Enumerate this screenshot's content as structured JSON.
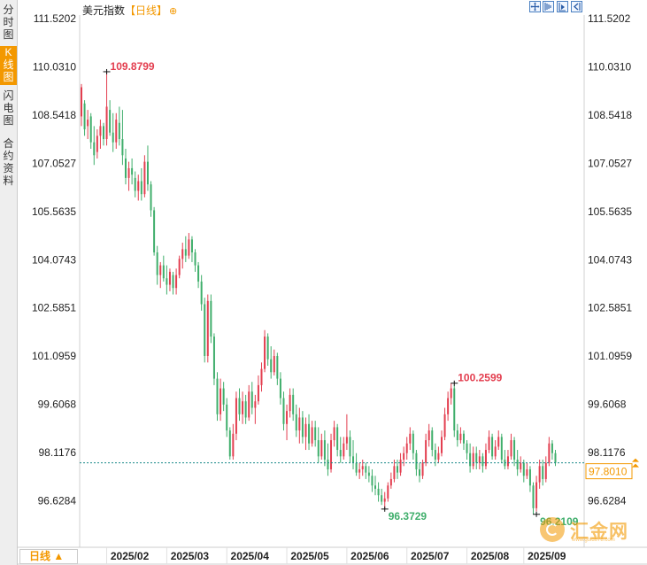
{
  "sidebar": {
    "tabs": [
      {
        "label": "分时图",
        "active": false
      },
      {
        "label": "K线图",
        "active": true
      },
      {
        "label": "闪电图",
        "active": false
      },
      {
        "label": "合约资料",
        "active": false
      }
    ]
  },
  "header": {
    "instrument": "美元指数",
    "period_label": "【日线】",
    "add_icon": "plus-circle-icon"
  },
  "toolbar": {
    "icons": [
      "move-icon",
      "zoom-in-icon",
      "zoom-out-icon",
      "scroll-end-icon"
    ]
  },
  "footer": {
    "period_selector": "日线 ▲"
  },
  "logo": {
    "text": "汇金网",
    "url": "www.gold678.com"
  },
  "colors": {
    "up": "#e33e4f",
    "down": "#3fae6b",
    "accent": "#f39800",
    "current_line": "#1a8a8a"
  },
  "chart_data": {
    "type": "candlestick",
    "title": "美元指数",
    "period": "日线",
    "y_ticks": [
      "111.5202",
      "110.0310",
      "108.5418",
      "107.0527",
      "105.5635",
      "104.0743",
      "102.5851",
      "101.0959",
      "99.6068",
      "98.1176",
      "96.6284"
    ],
    "ylim": [
      95.6,
      111.5202
    ],
    "x_ticks": [
      "2025/02",
      "2025/03",
      "2025/04",
      "2025/05",
      "2025/06",
      "2025/07",
      "2025/08",
      "2025/09"
    ],
    "x_tick_index": [
      8,
      27,
      46,
      65,
      84,
      103,
      122,
      140
    ],
    "current_value": "97.8010",
    "current_price": 97.801,
    "annotations": [
      {
        "label": "109.8799",
        "value": 109.8799,
        "index": 8,
        "kind": "high"
      },
      {
        "label": "100.2599",
        "value": 100.2599,
        "index": 118,
        "kind": "high"
      },
      {
        "label": "96.3729",
        "value": 96.3729,
        "index": 96,
        "kind": "low"
      },
      {
        "label": "96.2109",
        "value": 96.2109,
        "index": 144,
        "kind": "low"
      }
    ],
    "candles": [
      {
        "o": 108.5,
        "h": 109.5,
        "l": 108.2,
        "c": 109.4
      },
      {
        "o": 108.9,
        "h": 109.0,
        "l": 107.9,
        "c": 108.1
      },
      {
        "o": 108.2,
        "h": 108.7,
        "l": 107.8,
        "c": 108.4
      },
      {
        "o": 108.5,
        "h": 108.6,
        "l": 107.5,
        "c": 107.7
      },
      {
        "o": 107.7,
        "h": 108.2,
        "l": 107.0,
        "c": 107.3
      },
      {
        "o": 107.4,
        "h": 108.1,
        "l": 107.2,
        "c": 107.9
      },
      {
        "o": 107.9,
        "h": 108.4,
        "l": 107.5,
        "c": 108.2
      },
      {
        "o": 108.2,
        "h": 108.3,
        "l": 107.6,
        "c": 107.8
      },
      {
        "o": 107.8,
        "h": 109.8799,
        "l": 107.6,
        "c": 108.8
      },
      {
        "o": 108.7,
        "h": 109.0,
        "l": 107.9,
        "c": 108.0
      },
      {
        "o": 108.0,
        "h": 108.6,
        "l": 107.4,
        "c": 107.7
      },
      {
        "o": 107.7,
        "h": 108.6,
        "l": 107.5,
        "c": 108.4
      },
      {
        "o": 108.3,
        "h": 108.8,
        "l": 107.6,
        "c": 107.8
      },
      {
        "o": 107.8,
        "h": 108.7,
        "l": 107.0,
        "c": 107.3
      },
      {
        "o": 107.2,
        "h": 107.5,
        "l": 106.4,
        "c": 106.6
      },
      {
        "o": 106.6,
        "h": 107.1,
        "l": 106.2,
        "c": 106.9
      },
      {
        "o": 106.9,
        "h": 107.2,
        "l": 106.4,
        "c": 106.7
      },
      {
        "o": 106.6,
        "h": 106.8,
        "l": 106.0,
        "c": 106.2
      },
      {
        "o": 106.2,
        "h": 106.7,
        "l": 105.9,
        "c": 106.5
      },
      {
        "o": 106.5,
        "h": 106.9,
        "l": 105.9,
        "c": 106.1
      },
      {
        "o": 106.1,
        "h": 107.3,
        "l": 106.0,
        "c": 107.1
      },
      {
        "o": 107.1,
        "h": 107.6,
        "l": 106.2,
        "c": 106.4
      },
      {
        "o": 106.4,
        "h": 106.5,
        "l": 105.4,
        "c": 105.6
      },
      {
        "o": 105.6,
        "h": 105.7,
        "l": 104.2,
        "c": 104.3
      },
      {
        "o": 104.3,
        "h": 104.5,
        "l": 103.3,
        "c": 103.6
      },
      {
        "o": 103.6,
        "h": 104.0,
        "l": 103.2,
        "c": 103.9
      },
      {
        "o": 103.9,
        "h": 104.2,
        "l": 103.4,
        "c": 103.5
      },
      {
        "o": 103.5,
        "h": 103.9,
        "l": 103.0,
        "c": 103.3
      },
      {
        "o": 103.3,
        "h": 103.8,
        "l": 103.1,
        "c": 103.7
      },
      {
        "o": 103.6,
        "h": 103.7,
        "l": 103.0,
        "c": 103.2
      },
      {
        "o": 103.2,
        "h": 103.8,
        "l": 103.0,
        "c": 103.6
      },
      {
        "o": 103.6,
        "h": 104.2,
        "l": 103.5,
        "c": 104.1
      },
      {
        "o": 104.1,
        "h": 104.6,
        "l": 103.8,
        "c": 104.4
      },
      {
        "o": 104.4,
        "h": 104.8,
        "l": 104.0,
        "c": 104.2
      },
      {
        "o": 104.2,
        "h": 104.9,
        "l": 104.1,
        "c": 104.7
      },
      {
        "o": 104.7,
        "h": 104.8,
        "l": 104.0,
        "c": 104.3
      },
      {
        "o": 104.3,
        "h": 104.4,
        "l": 103.7,
        "c": 103.9
      },
      {
        "o": 103.9,
        "h": 104.0,
        "l": 103.2,
        "c": 103.4
      },
      {
        "o": 103.4,
        "h": 103.6,
        "l": 102.5,
        "c": 102.7
      },
      {
        "o": 102.7,
        "h": 102.9,
        "l": 100.9,
        "c": 101.1
      },
      {
        "o": 101.1,
        "h": 103.0,
        "l": 100.9,
        "c": 102.8
      },
      {
        "o": 102.8,
        "h": 103.0,
        "l": 101.5,
        "c": 101.7
      },
      {
        "o": 101.7,
        "h": 101.8,
        "l": 100.2,
        "c": 100.4
      },
      {
        "o": 100.4,
        "h": 100.6,
        "l": 99.1,
        "c": 99.3
      },
      {
        "o": 99.3,
        "h": 100.4,
        "l": 99.1,
        "c": 100.1
      },
      {
        "o": 100.1,
        "h": 100.3,
        "l": 99.4,
        "c": 99.6
      },
      {
        "o": 99.6,
        "h": 99.8,
        "l": 98.6,
        "c": 98.8
      },
      {
        "o": 98.8,
        "h": 98.9,
        "l": 97.9,
        "c": 98.0
      },
      {
        "o": 98.0,
        "h": 99.0,
        "l": 97.9,
        "c": 98.7
      },
      {
        "o": 98.7,
        "h": 100.0,
        "l": 98.5,
        "c": 99.8
      },
      {
        "o": 99.8,
        "h": 100.1,
        "l": 99.1,
        "c": 99.3
      },
      {
        "o": 99.3,
        "h": 100.0,
        "l": 99.0,
        "c": 99.7
      },
      {
        "o": 99.7,
        "h": 99.9,
        "l": 99.0,
        "c": 99.2
      },
      {
        "o": 99.2,
        "h": 100.2,
        "l": 99.1,
        "c": 100.0
      },
      {
        "o": 100.0,
        "h": 100.3,
        "l": 99.3,
        "c": 99.5
      },
      {
        "o": 99.5,
        "h": 99.9,
        "l": 99.0,
        "c": 99.7
      },
      {
        "o": 99.7,
        "h": 100.5,
        "l": 99.6,
        "c": 100.2
      },
      {
        "o": 100.2,
        "h": 100.9,
        "l": 100.0,
        "c": 100.7
      },
      {
        "o": 100.7,
        "h": 101.9,
        "l": 100.6,
        "c": 101.7
      },
      {
        "o": 101.7,
        "h": 101.8,
        "l": 100.8,
        "c": 101.0
      },
      {
        "o": 101.0,
        "h": 101.4,
        "l": 100.4,
        "c": 100.6
      },
      {
        "o": 100.6,
        "h": 101.3,
        "l": 100.5,
        "c": 101.1
      },
      {
        "o": 101.1,
        "h": 101.2,
        "l": 100.2,
        "c": 100.4
      },
      {
        "o": 100.4,
        "h": 100.6,
        "l": 99.6,
        "c": 99.8
      },
      {
        "o": 99.8,
        "h": 100.0,
        "l": 98.8,
        "c": 99.0
      },
      {
        "o": 99.0,
        "h": 99.6,
        "l": 98.5,
        "c": 99.4
      },
      {
        "o": 99.4,
        "h": 100.1,
        "l": 99.2,
        "c": 99.9
      },
      {
        "o": 99.9,
        "h": 100.1,
        "l": 99.1,
        "c": 99.3
      },
      {
        "o": 99.3,
        "h": 99.6,
        "l": 98.6,
        "c": 98.8
      },
      {
        "o": 98.8,
        "h": 99.5,
        "l": 98.4,
        "c": 99.2
      },
      {
        "o": 99.2,
        "h": 99.4,
        "l": 98.4,
        "c": 98.6
      },
      {
        "o": 98.6,
        "h": 99.2,
        "l": 98.2,
        "c": 99.0
      },
      {
        "o": 99.0,
        "h": 99.3,
        "l": 98.2,
        "c": 98.4
      },
      {
        "o": 98.4,
        "h": 99.1,
        "l": 98.3,
        "c": 98.9
      },
      {
        "o": 98.9,
        "h": 99.1,
        "l": 98.3,
        "c": 98.5
      },
      {
        "o": 98.5,
        "h": 98.9,
        "l": 97.8,
        "c": 98.0
      },
      {
        "o": 98.0,
        "h": 98.7,
        "l": 97.9,
        "c": 98.5
      },
      {
        "o": 98.5,
        "h": 98.8,
        "l": 97.7,
        "c": 97.9
      },
      {
        "o": 97.9,
        "h": 98.4,
        "l": 97.4,
        "c": 97.6
      },
      {
        "o": 97.6,
        "h": 98.7,
        "l": 97.5,
        "c": 98.5
      },
      {
        "o": 98.5,
        "h": 99.1,
        "l": 98.3,
        "c": 98.9
      },
      {
        "o": 98.9,
        "h": 99.0,
        "l": 98.0,
        "c": 98.2
      },
      {
        "o": 98.2,
        "h": 98.6,
        "l": 97.8,
        "c": 98.0
      },
      {
        "o": 98.0,
        "h": 98.6,
        "l": 97.9,
        "c": 98.4
      },
      {
        "o": 98.4,
        "h": 99.3,
        "l": 98.2,
        "c": 98.6
      },
      {
        "o": 98.6,
        "h": 98.8,
        "l": 97.8,
        "c": 98.0
      },
      {
        "o": 98.0,
        "h": 98.5,
        "l": 97.6,
        "c": 97.8
      },
      {
        "o": 97.8,
        "h": 98.1,
        "l": 97.4,
        "c": 97.5
      },
      {
        "o": 97.5,
        "h": 97.8,
        "l": 97.3,
        "c": 97.6
      },
      {
        "o": 97.6,
        "h": 97.9,
        "l": 97.4,
        "c": 97.7
      },
      {
        "o": 97.7,
        "h": 97.8,
        "l": 97.3,
        "c": 97.5
      },
      {
        "o": 97.5,
        "h": 97.7,
        "l": 97.2,
        "c": 97.4
      },
      {
        "o": 97.4,
        "h": 97.6,
        "l": 96.9,
        "c": 97.1
      },
      {
        "o": 97.1,
        "h": 97.4,
        "l": 96.8,
        "c": 97.0
      },
      {
        "o": 97.0,
        "h": 97.2,
        "l": 96.6,
        "c": 96.8
      },
      {
        "o": 96.8,
        "h": 97.0,
        "l": 96.5,
        "c": 96.6
      },
      {
        "o": 96.6,
        "h": 96.9,
        "l": 96.3729,
        "c": 96.7
      },
      {
        "o": 96.7,
        "h": 97.2,
        "l": 96.6,
        "c": 97.1
      },
      {
        "o": 97.1,
        "h": 97.5,
        "l": 97.0,
        "c": 97.3
      },
      {
        "o": 97.3,
        "h": 97.9,
        "l": 97.2,
        "c": 97.7
      },
      {
        "o": 97.7,
        "h": 97.9,
        "l": 97.3,
        "c": 97.5
      },
      {
        "o": 97.5,
        "h": 98.1,
        "l": 97.4,
        "c": 97.9
      },
      {
        "o": 97.9,
        "h": 98.3,
        "l": 97.7,
        "c": 98.1
      },
      {
        "o": 98.1,
        "h": 98.6,
        "l": 97.9,
        "c": 98.4
      },
      {
        "o": 98.4,
        "h": 98.9,
        "l": 98.2,
        "c": 98.7
      },
      {
        "o": 98.7,
        "h": 98.8,
        "l": 97.9,
        "c": 98.1
      },
      {
        "o": 98.1,
        "h": 98.2,
        "l": 97.4,
        "c": 97.6
      },
      {
        "o": 97.6,
        "h": 97.8,
        "l": 97.2,
        "c": 97.4
      },
      {
        "o": 97.4,
        "h": 97.9,
        "l": 97.3,
        "c": 97.8
      },
      {
        "o": 97.8,
        "h": 98.7,
        "l": 97.7,
        "c": 98.5
      },
      {
        "o": 98.5,
        "h": 99.0,
        "l": 98.3,
        "c": 98.8
      },
      {
        "o": 98.8,
        "h": 98.9,
        "l": 98.0,
        "c": 98.2
      },
      {
        "o": 98.2,
        "h": 98.4,
        "l": 97.7,
        "c": 97.9
      },
      {
        "o": 97.9,
        "h": 98.3,
        "l": 97.8,
        "c": 98.1
      },
      {
        "o": 98.1,
        "h": 98.8,
        "l": 98.0,
        "c": 98.6
      },
      {
        "o": 98.6,
        "h": 99.5,
        "l": 98.5,
        "c": 99.3
      },
      {
        "o": 99.3,
        "h": 100.0,
        "l": 99.1,
        "c": 99.8
      },
      {
        "o": 99.8,
        "h": 100.2599,
        "l": 99.6,
        "c": 100.1
      },
      {
        "o": 100.1,
        "h": 100.2,
        "l": 98.6,
        "c": 98.8
      },
      {
        "o": 98.8,
        "h": 99.0,
        "l": 98.3,
        "c": 98.5
      },
      {
        "o": 98.5,
        "h": 98.9,
        "l": 98.4,
        "c": 98.7
      },
      {
        "o": 98.7,
        "h": 98.8,
        "l": 98.2,
        "c": 98.4
      },
      {
        "o": 98.4,
        "h": 98.5,
        "l": 97.9,
        "c": 98.1
      },
      {
        "o": 98.1,
        "h": 98.4,
        "l": 97.5,
        "c": 97.7
      },
      {
        "o": 97.7,
        "h": 98.3,
        "l": 97.6,
        "c": 98.1
      },
      {
        "o": 98.1,
        "h": 98.3,
        "l": 97.6,
        "c": 97.8
      },
      {
        "o": 97.8,
        "h": 98.2,
        "l": 97.6,
        "c": 98.0
      },
      {
        "o": 98.0,
        "h": 98.1,
        "l": 97.5,
        "c": 97.7
      },
      {
        "o": 97.7,
        "h": 98.4,
        "l": 97.6,
        "c": 98.2
      },
      {
        "o": 98.2,
        "h": 98.8,
        "l": 98.1,
        "c": 98.6
      },
      {
        "o": 98.6,
        "h": 98.7,
        "l": 97.9,
        "c": 98.0
      },
      {
        "o": 98.0,
        "h": 98.5,
        "l": 97.9,
        "c": 98.3
      },
      {
        "o": 98.3,
        "h": 98.8,
        "l": 98.2,
        "c": 98.6
      },
      {
        "o": 98.6,
        "h": 98.7,
        "l": 97.8,
        "c": 97.9
      },
      {
        "o": 97.9,
        "h": 98.2,
        "l": 97.6,
        "c": 97.7
      },
      {
        "o": 97.7,
        "h": 98.2,
        "l": 97.6,
        "c": 98.0
      },
      {
        "o": 98.0,
        "h": 98.7,
        "l": 97.9,
        "c": 98.5
      },
      {
        "o": 98.5,
        "h": 98.6,
        "l": 97.7,
        "c": 97.9
      },
      {
        "o": 97.9,
        "h": 98.2,
        "l": 97.4,
        "c": 97.6
      },
      {
        "o": 97.6,
        "h": 98.0,
        "l": 97.5,
        "c": 97.8
      },
      {
        "o": 97.8,
        "h": 97.9,
        "l": 97.2,
        "c": 97.4
      },
      {
        "o": 97.4,
        "h": 97.8,
        "l": 97.3,
        "c": 97.6
      },
      {
        "o": 97.6,
        "h": 97.7,
        "l": 96.9,
        "c": 97.1
      },
      {
        "o": 97.1,
        "h": 97.2,
        "l": 96.2109,
        "c": 96.4
      },
      {
        "o": 96.4,
        "h": 97.4,
        "l": 96.3,
        "c": 97.2
      },
      {
        "o": 97.2,
        "h": 97.9,
        "l": 97.0,
        "c": 97.7
      },
      {
        "o": 97.7,
        "h": 97.9,
        "l": 97.1,
        "c": 97.3
      },
      {
        "o": 97.3,
        "h": 98.0,
        "l": 97.2,
        "c": 97.8
      },
      {
        "o": 97.8,
        "h": 98.6,
        "l": 97.7,
        "c": 98.4
      },
      {
        "o": 98.4,
        "h": 98.5,
        "l": 97.9,
        "c": 98.1
      },
      {
        "o": 98.1,
        "h": 98.2,
        "l": 97.7,
        "c": 97.8
      }
    ]
  }
}
